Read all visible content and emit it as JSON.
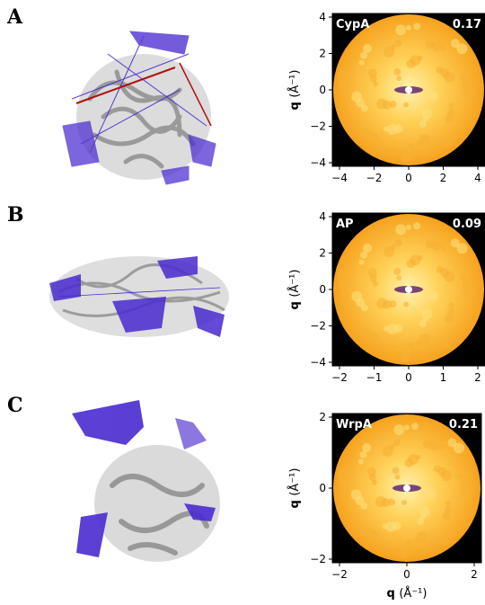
{
  "panels": [
    {
      "letter": "A",
      "protein": "CypA",
      "value": "0.17",
      "xticks": [
        "−4",
        "−2",
        "0",
        "2",
        "4"
      ],
      "yticks": [
        "4",
        "2",
        "0",
        "−2",
        "−4"
      ]
    },
    {
      "letter": "B",
      "protein": "AP",
      "value": "0.09",
      "xticks": [
        "−2",
        "−1",
        "0",
        "1",
        "2"
      ],
      "yticks": [
        "4",
        "2",
        "0",
        "−2",
        "−4"
      ]
    },
    {
      "letter": "C",
      "protein": "WrpA",
      "value": "0.21",
      "xticks": [
        "−2",
        "0",
        "2"
      ],
      "yticks": [
        "2",
        "0",
        "−2"
      ]
    }
  ],
  "axis_label_q": "q",
  "axis_label_unit": "(Å⁻¹)",
  "colors": {
    "map_bg": "#000000",
    "map_outer": "#f6a21e",
    "map_inner": "#ffd25a",
    "map_dark": "#5a1a6e",
    "network": "#4a2ad0",
    "ribbon": "#d2d2d2"
  }
}
